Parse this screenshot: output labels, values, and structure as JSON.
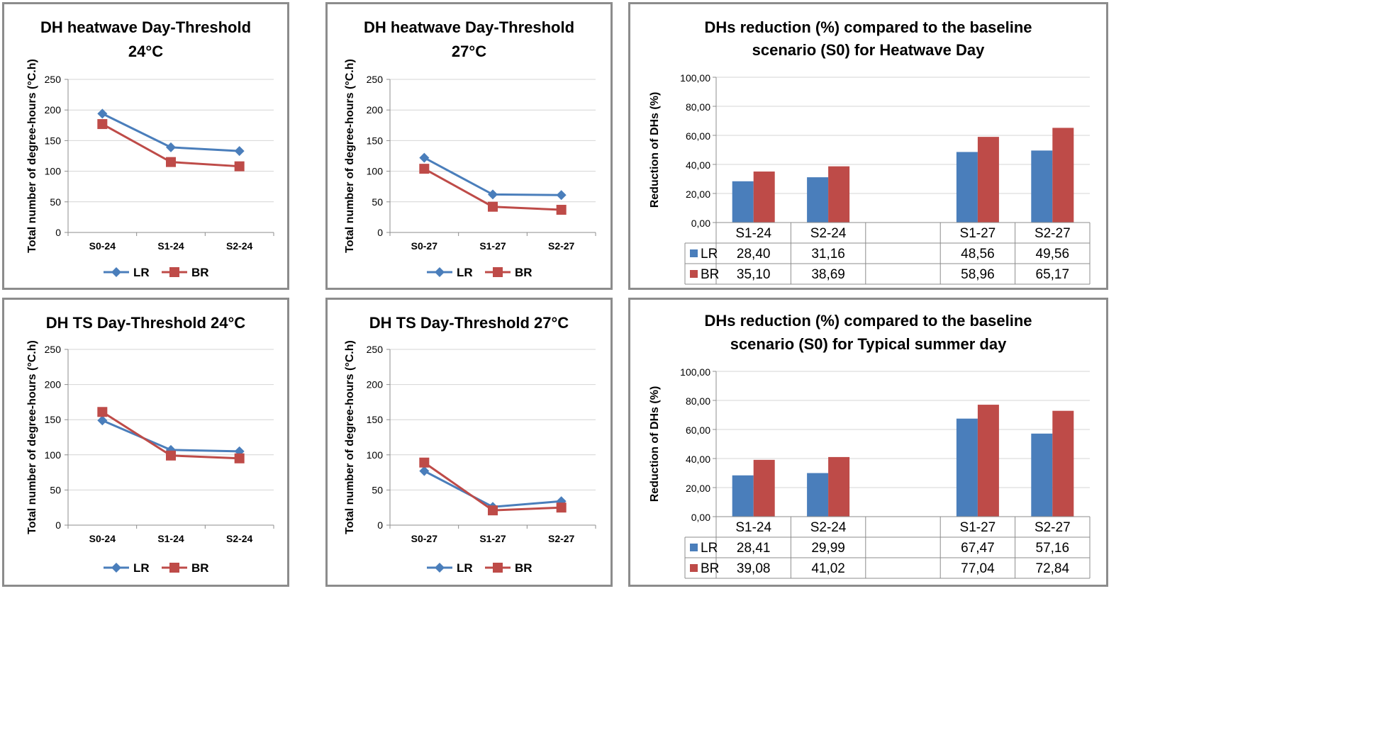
{
  "colors": {
    "LR": "#4a7ebb",
    "BR": "#be4b48"
  },
  "chart_data": [
    {
      "type": "line",
      "title": [
        "DH heatwave Day-Threshold",
        "24°C"
      ],
      "ylabel": "Total number of degree-hours (°C.h)",
      "categories": [
        "S0-24",
        "S1-24",
        "S2-24"
      ],
      "ylim": [
        0,
        250
      ],
      "yticks": [
        "0",
        "50",
        "100",
        "150",
        "200",
        "250"
      ],
      "series": [
        {
          "name": "LR",
          "values": [
            194,
            139,
            133
          ]
        },
        {
          "name": "BR",
          "values": [
            177,
            115,
            108
          ]
        }
      ],
      "legend": "bottom"
    },
    {
      "type": "line",
      "title": [
        "DH heatwave Day-Threshold",
        "27°C"
      ],
      "ylabel": "Total number of degree-hours (°C.h)",
      "categories": [
        "S0-27",
        "S1-27",
        "S2-27"
      ],
      "ylim": [
        0,
        250
      ],
      "yticks": [
        "0",
        "50",
        "100",
        "150",
        "200",
        "250"
      ],
      "series": [
        {
          "name": "LR",
          "values": [
            122,
            62,
            61
          ]
        },
        {
          "name": "BR",
          "values": [
            104,
            42,
            37
          ]
        }
      ],
      "legend": "bottom"
    },
    {
      "type": "bar",
      "title": [
        "DHs reduction (%) compared to the baseline",
        "scenario (S0) for Heatwave Day"
      ],
      "ylabel": "Reduction of DHs (%)",
      "categories": [
        "S1-24",
        "S2-24",
        "",
        "S1-27",
        "S2-27"
      ],
      "ylim": [
        0,
        100
      ],
      "yticks": [
        "0,00",
        "20,00",
        "40,00",
        "60,00",
        "80,00",
        "100,00"
      ],
      "series": [
        {
          "name": "LR",
          "values": [
            28.4,
            31.16,
            null,
            48.56,
            49.56
          ],
          "labels": [
            "28,40",
            "31,16",
            "",
            "48,56",
            "49,56"
          ]
        },
        {
          "name": "BR",
          "values": [
            35.1,
            38.69,
            null,
            58.96,
            65.17
          ],
          "labels": [
            "35,10",
            "38,69",
            "",
            "58,96",
            "65,17"
          ]
        }
      ],
      "data_table": true
    },
    {
      "type": "line",
      "title": [
        "DH TS Day-Threshold 24°C"
      ],
      "ylabel": "Total number of degree-hours (°C.h)",
      "categories": [
        "S0-24",
        "S1-24",
        "S2-24"
      ],
      "ylim": [
        0,
        250
      ],
      "yticks": [
        "0",
        "50",
        "100",
        "150",
        "200",
        "250"
      ],
      "series": [
        {
          "name": "LR",
          "values": [
            149,
            107,
            105
          ]
        },
        {
          "name": "BR",
          "values": [
            161,
            99,
            95
          ]
        }
      ],
      "legend": "bottom"
    },
    {
      "type": "line",
      "title": [
        "DH TS Day-Threshold 27°C"
      ],
      "ylabel": "Total number of degree-hours (°C.h)",
      "categories": [
        "S0-27",
        "S1-27",
        "S2-27"
      ],
      "ylim": [
        0,
        250
      ],
      "yticks": [
        "0",
        "50",
        "100",
        "150",
        "200",
        "250"
      ],
      "series": [
        {
          "name": "LR",
          "values": [
            77,
            26,
            34
          ]
        },
        {
          "name": "BR",
          "values": [
            89,
            21,
            25
          ]
        }
      ],
      "legend": "bottom"
    },
    {
      "type": "bar",
      "title": [
        "DHs reduction (%) compared to the baseline",
        "scenario (S0) for Typical summer day"
      ],
      "ylabel": "Reduction of DHs (%)",
      "categories": [
        "S1-24",
        "S2-24",
        "",
        "S1-27",
        "S2-27"
      ],
      "ylim": [
        0,
        100
      ],
      "yticks": [
        "0,00",
        "20,00",
        "40,00",
        "60,00",
        "80,00",
        "100,00"
      ],
      "series": [
        {
          "name": "LR",
          "values": [
            28.41,
            29.99,
            null,
            67.47,
            57.16
          ],
          "labels": [
            "28,41",
            "29,99",
            "",
            "67,47",
            "57,16"
          ]
        },
        {
          "name": "BR",
          "values": [
            39.08,
            41.02,
            null,
            77.04,
            72.84
          ],
          "labels": [
            "39,08",
            "41,02",
            "",
            "77,04",
            "72,84"
          ]
        }
      ],
      "data_table": true
    }
  ]
}
